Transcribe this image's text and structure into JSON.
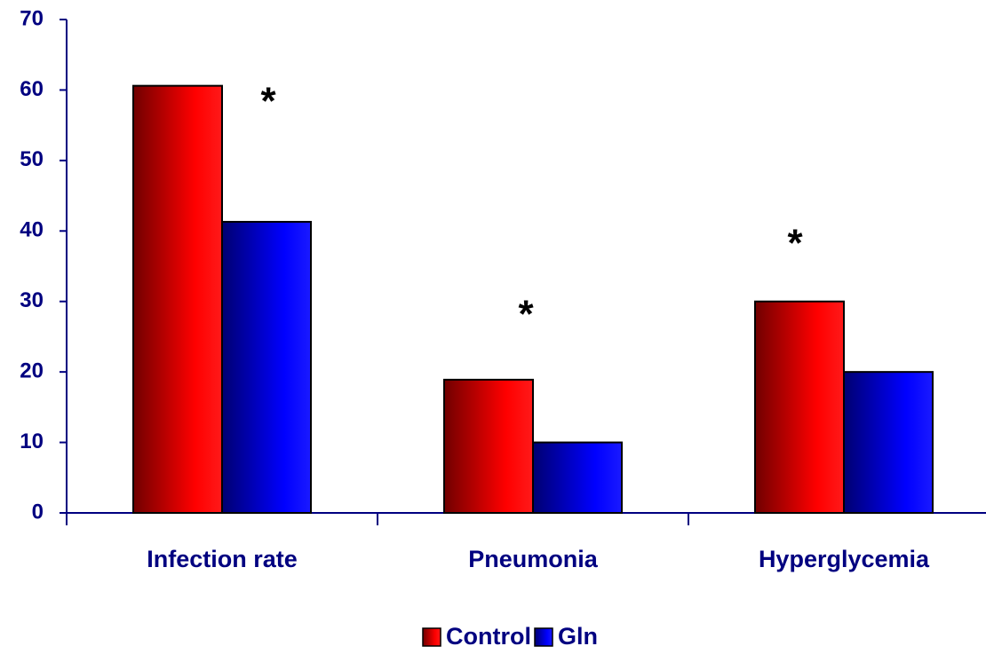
{
  "chart_data": {
    "type": "bar",
    "categories": [
      "Infection rate",
      "Pneumonia",
      "Hyperglycemia"
    ],
    "series": [
      {
        "name": "Control",
        "color": "#ff0000",
        "values": [
          60.6,
          18.9,
          30
        ]
      },
      {
        "name": "Gln",
        "color": "#0000ff",
        "values": [
          41.3,
          10,
          20
        ]
      }
    ],
    "ylim": [
      0,
      70
    ],
    "yticks": [
      0,
      10,
      20,
      30,
      40,
      50,
      60,
      70
    ],
    "annotations": [
      "*",
      "*",
      "*"
    ],
    "grid": false,
    "legend": "bottom"
  }
}
